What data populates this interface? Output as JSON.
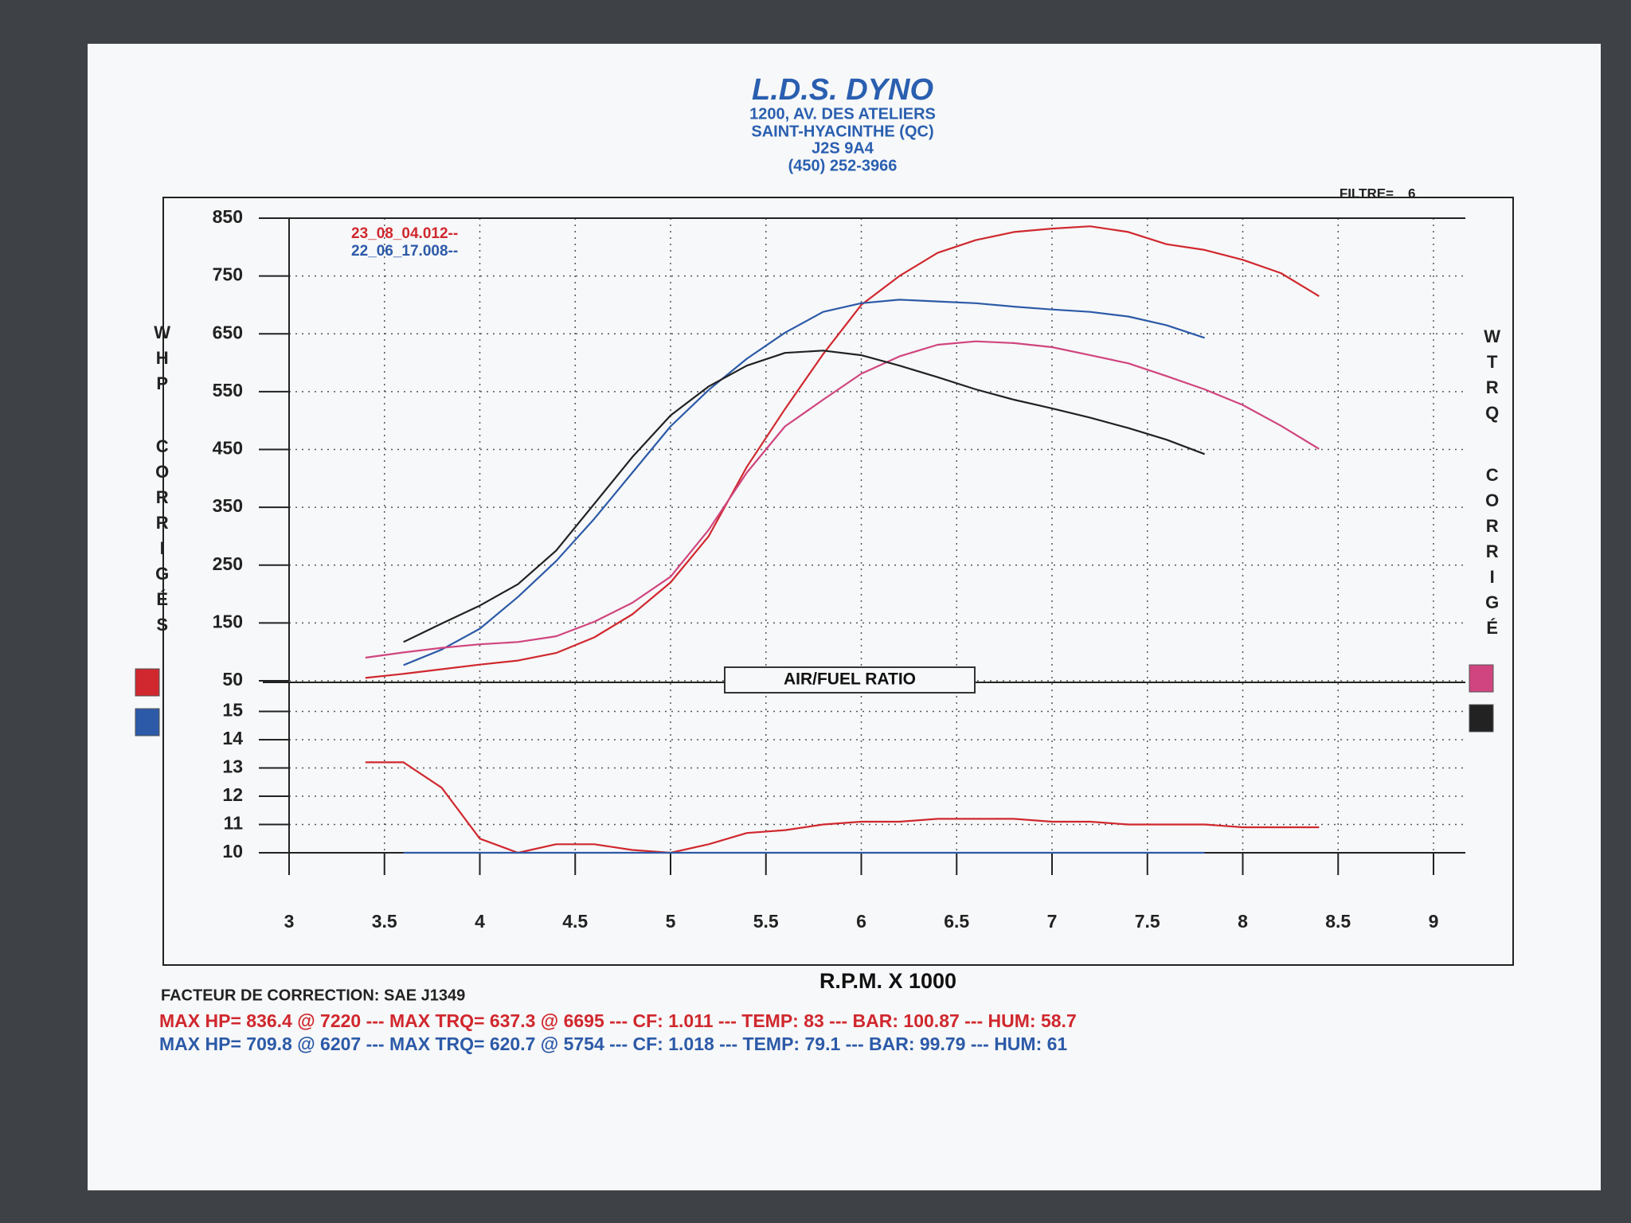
{
  "header": {
    "title": "L.D.S. DYNO",
    "lines": [
      "1200, AV. DES ATELIERS",
      "SAINT-HYACINTHE (QC)",
      "J2S 9A4",
      "(450) 252-3966"
    ],
    "filter_label": "FILTRE=",
    "filter_value": "6"
  },
  "chart_data": [
    {
      "type": "line",
      "ylabel": [
        "WHP",
        "CORRIGÉS"
      ],
      "y2label": [
        "WTRQ",
        "CORRIGÉ"
      ],
      "x": [
        3.4,
        3.6,
        3.8,
        4.0,
        4.2,
        4.4,
        4.6,
        4.8,
        5.0,
        5.2,
        5.4,
        5.6,
        5.8,
        6.0,
        6.2,
        6.4,
        6.6,
        6.8,
        7.0,
        7.2,
        7.4,
        7.6,
        7.8,
        8.0,
        8.2,
        8.4
      ],
      "series": [
        {
          "name": "23_08_04.012--",
          "color": "#d0282e",
          "values": [
            55,
            62,
            70,
            78,
            85,
            98,
            125,
            165,
            220,
            300,
            420,
            520,
            615,
            700,
            750,
            790,
            812,
            826,
            832,
            836,
            826,
            805,
            795,
            778,
            755,
            715
          ]
        },
        {
          "name": "22_06_17.008--",
          "color": "#2c5aa8",
          "values": [
            null,
            77,
            104,
            140,
            195,
            257,
            330,
            410,
            490,
            553,
            607,
            652,
            688,
            703,
            709,
            706,
            703,
            697,
            692,
            688,
            680,
            665,
            643,
            null,
            null,
            null
          ]
        },
        {
          "color": "#d0457f",
          "values": [
            90,
            99,
            107,
            113,
            117,
            127,
            152,
            185,
            230,
            311,
            410,
            490,
            536,
            581,
            611,
            631,
            637,
            634,
            627,
            613,
            599,
            577,
            554,
            527,
            491,
            451
          ]
        },
        {
          "color": "#222222",
          "values": [
            null,
            117,
            149,
            180,
            217,
            275,
            356,
            437,
            509,
            559,
            595,
            617,
            621,
            613,
            595,
            575,
            554,
            536,
            521,
            505,
            487,
            467,
            442,
            null,
            null,
            null
          ]
        }
      ],
      "xlim": [
        3,
        9
      ],
      "xticks": [
        3,
        3.5,
        4,
        4.5,
        5,
        5.5,
        6,
        6.5,
        7,
        7.5,
        8,
        8.5,
        9
      ],
      "ylim": [
        50,
        850
      ],
      "yticks": [
        850,
        750,
        650,
        550,
        450,
        350,
        250,
        150,
        50
      ],
      "grid": true,
      "legend": "upper left"
    },
    {
      "type": "line",
      "title": "AIR/FUEL RATIO",
      "xlabel": "R.P.M. X 1000",
      "x": [
        3.4,
        3.6,
        3.8,
        4.0,
        4.2,
        4.4,
        4.6,
        4.8,
        5.0,
        5.2,
        5.4,
        5.6,
        5.8,
        6.0,
        6.2,
        6.4,
        6.6,
        6.8,
        7.0,
        7.2,
        7.4,
        7.6,
        7.8,
        8.0,
        8.2,
        8.4
      ],
      "series": [
        {
          "color": "#d0282e",
          "values": [
            13.2,
            13.2,
            12.3,
            10.5,
            10.0,
            10.3,
            10.3,
            10.1,
            10.0,
            10.3,
            10.7,
            10.8,
            11.0,
            11.1,
            11.1,
            11.2,
            11.2,
            11.2,
            11.1,
            11.1,
            11.0,
            11.0,
            11.0,
            10.9,
            10.9,
            10.9
          ]
        },
        {
          "color": "#2c5aa8",
          "values": [
            null,
            10,
            10,
            10,
            10,
            10,
            10,
            10,
            10,
            10,
            10,
            10,
            10,
            10,
            10,
            10,
            10,
            10,
            10,
            10,
            10,
            10,
            10,
            null,
            null,
            null
          ]
        }
      ],
      "xlim": [
        3,
        9
      ],
      "xticks": [
        3,
        3.5,
        4,
        4.5,
        5,
        5.5,
        6,
        6.5,
        7,
        7.5,
        8,
        8.5,
        9
      ],
      "ylim": [
        10,
        16
      ],
      "yticks": [
        15,
        14,
        13,
        12,
        11,
        10
      ],
      "grid": true
    }
  ],
  "footer": {
    "correction": "FACTEUR DE CORRECTION: SAE J1349",
    "lines": [
      "MAX HP= 836.4 @ 7220 --- MAX TRQ= 637.3 @ 6695 --- CF: 1.011 --- TEMP: 83 --- BAR: 100.87 --- HUM: 58.7",
      "MAX HP= 709.8 @ 6207 --- MAX TRQ= 620.7 @ 5754 --- CF: 1.018 --- TEMP: 79.1 --- BAR: 99.79 --- HUM: 61"
    ]
  }
}
